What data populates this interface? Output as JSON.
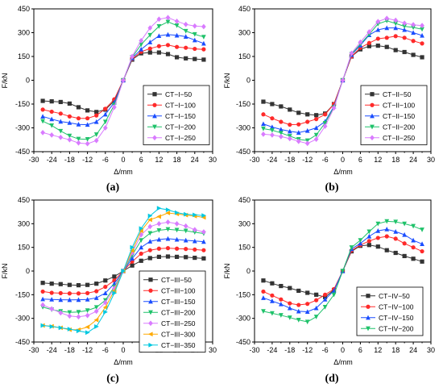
{
  "chart_data": [
    {
      "type": "line",
      "panel_label": "(a)",
      "xlabel": "Δ/mm",
      "ylabel": "F/kN",
      "xlim": [
        -30,
        30
      ],
      "ylim": [
        -450,
        450
      ],
      "xticks": [
        -30,
        -24,
        -18,
        -12,
        -6,
        0,
        6,
        12,
        18,
        24,
        30
      ],
      "yticks": [
        -450,
        -300,
        -150,
        0,
        150,
        300,
        450
      ],
      "legend_position": "right-middle",
      "x": [
        -27,
        -24,
        -21,
        -18,
        -15,
        -12,
        -9,
        -6,
        -3,
        0,
        3,
        6,
        9,
        12,
        15,
        18,
        21,
        24,
        27
      ],
      "series": [
        {
          "name": "CT−I−50",
          "color": "#333333",
          "marker": "square",
          "values": [
            -130,
            -133,
            -137,
            -147,
            -170,
            -190,
            -200,
            -185,
            -130,
            0,
            130,
            170,
            175,
            175,
            165,
            145,
            138,
            134,
            130
          ]
        },
        {
          "name": "CT−I−100",
          "color": "#ff2a2a",
          "marker": "circle",
          "values": [
            -185,
            -198,
            -210,
            -228,
            -240,
            -240,
            -222,
            -180,
            -120,
            0,
            135,
            180,
            200,
            215,
            222,
            210,
            205,
            198,
            195
          ]
        },
        {
          "name": "CT−I−150",
          "color": "#1a4dff",
          "marker": "triangle-up",
          "values": [
            -228,
            -245,
            -260,
            -268,
            -278,
            -280,
            -262,
            -215,
            -140,
            0,
            140,
            195,
            240,
            280,
            288,
            283,
            275,
            253,
            232
          ]
        },
        {
          "name": "CT−I−200",
          "color": "#1fc26a",
          "marker": "triangle-down",
          "values": [
            -258,
            -285,
            -320,
            -350,
            -370,
            -372,
            -342,
            -262,
            -155,
            0,
            145,
            225,
            285,
            340,
            368,
            345,
            310,
            290,
            273
          ]
        },
        {
          "name": "CT−I−250",
          "color": "#d97bff",
          "marker": "diamond",
          "values": [
            -330,
            -345,
            -360,
            -375,
            -395,
            -400,
            -380,
            -300,
            -170,
            0,
            150,
            250,
            330,
            385,
            395,
            372,
            352,
            342,
            338
          ]
        }
      ]
    },
    {
      "type": "line",
      "panel_label": "(b)",
      "xlabel": "Δ/mm",
      "ylabel": "F/kN",
      "xlim": [
        -30,
        30
      ],
      "ylim": [
        -450,
        450
      ],
      "xticks": [
        -30,
        -24,
        -18,
        -12,
        -6,
        0,
        6,
        12,
        18,
        24,
        30
      ],
      "yticks": [
        -450,
        -300,
        -150,
        0,
        150,
        300,
        450
      ],
      "legend_position": "right-middle",
      "x": [
        -27,
        -24,
        -21,
        -18,
        -15,
        -12,
        -9,
        -6,
        -3,
        0,
        3,
        6,
        9,
        12,
        15,
        18,
        21,
        24,
        27
      ],
      "series": [
        {
          "name": "CT−II−50",
          "color": "#333333",
          "marker": "square",
          "values": [
            -135,
            -150,
            -165,
            -185,
            -205,
            -215,
            -220,
            -210,
            -150,
            0,
            150,
            195,
            215,
            218,
            210,
            190,
            178,
            160,
            145
          ]
        },
        {
          "name": "CT−II−100",
          "color": "#ff2a2a",
          "marker": "circle",
          "values": [
            -215,
            -240,
            -262,
            -280,
            -278,
            -262,
            -245,
            -215,
            -150,
            0,
            150,
            205,
            235,
            262,
            268,
            278,
            268,
            248,
            232
          ]
        },
        {
          "name": "CT−II−150",
          "color": "#1a4dff",
          "marker": "triangle-up",
          "values": [
            -275,
            -295,
            -310,
            -322,
            -330,
            -318,
            -300,
            -260,
            -165,
            0,
            160,
            220,
            285,
            318,
            330,
            330,
            318,
            300,
            282
          ]
        },
        {
          "name": "CT−II−200",
          "color": "#1fc26a",
          "marker": "triangle-down",
          "values": [
            -305,
            -315,
            -332,
            -352,
            -372,
            -380,
            -345,
            -270,
            -170,
            0,
            165,
            228,
            290,
            355,
            375,
            358,
            340,
            333,
            322
          ]
        },
        {
          "name": "CT−II−250",
          "color": "#d97bff",
          "marker": "diamond",
          "values": [
            -340,
            -345,
            -355,
            -368,
            -385,
            -398,
            -372,
            -290,
            -175,
            0,
            170,
            240,
            305,
            370,
            390,
            378,
            360,
            350,
            345
          ]
        }
      ]
    },
    {
      "type": "line",
      "panel_label": "(c)",
      "xlabel": "Δ/mm",
      "ylabel": "F/kN",
      "xlim": [
        -30,
        30
      ],
      "ylim": [
        -450,
        450
      ],
      "xticks": [
        -30,
        -24,
        -18,
        -12,
        -6,
        0,
        6,
        12,
        18,
        24,
        30
      ],
      "yticks": [
        -450,
        -300,
        -150,
        0,
        150,
        300,
        450
      ],
      "legend_position": "right-bottom",
      "x": [
        -27,
        -24,
        -21,
        -18,
        -15,
        -12,
        -9,
        -6,
        -3,
        0,
        3,
        6,
        9,
        12,
        15,
        18,
        21,
        24,
        27
      ],
      "series": [
        {
          "name": "CT−III−50",
          "color": "#333333",
          "marker": "square",
          "values": [
            -75,
            -80,
            -83,
            -88,
            -90,
            -88,
            -80,
            -60,
            -35,
            0,
            35,
            65,
            82,
            90,
            92,
            90,
            88,
            84,
            80
          ]
        },
        {
          "name": "CT−III−100",
          "color": "#ff2a2a",
          "marker": "circle",
          "values": [
            -130,
            -138,
            -140,
            -142,
            -142,
            -140,
            -128,
            -100,
            -60,
            0,
            60,
            110,
            132,
            142,
            145,
            142,
            140,
            136,
            132
          ]
        },
        {
          "name": "CT−III−150",
          "color": "#1a4dff",
          "marker": "triangle-up",
          "values": [
            -178,
            -180,
            -182,
            -183,
            -182,
            -180,
            -170,
            -140,
            -80,
            0,
            80,
            150,
            188,
            200,
            205,
            200,
            195,
            190,
            186
          ]
        },
        {
          "name": "CT−III−200",
          "color": "#1fc26a",
          "marker": "triangle-down",
          "values": [
            -228,
            -245,
            -255,
            -262,
            -260,
            -250,
            -230,
            -185,
            -100,
            0,
            100,
            195,
            240,
            258,
            265,
            260,
            255,
            246,
            238
          ]
        },
        {
          "name": "CT−III−250",
          "color": "#d97bff",
          "marker": "diamond",
          "values": [
            -215,
            -240,
            -265,
            -285,
            -290,
            -282,
            -255,
            -200,
            -110,
            0,
            115,
            230,
            282,
            300,
            310,
            300,
            285,
            262,
            248
          ]
        },
        {
          "name": "CT−III−300",
          "color": "#ffaa00",
          "marker": "triangle-left",
          "values": [
            -345,
            -350,
            -360,
            -372,
            -372,
            -355,
            -310,
            -230,
            -125,
            0,
            130,
            255,
            325,
            345,
            368,
            362,
            355,
            348,
            340
          ]
        },
        {
          "name": "CT−III−350",
          "color": "#00c8e0",
          "marker": "triangle-right",
          "values": [
            -345,
            -352,
            -360,
            -368,
            -380,
            -390,
            -352,
            -260,
            -140,
            0,
            150,
            270,
            350,
            398,
            388,
            370,
            360,
            356,
            352
          ]
        }
      ]
    },
    {
      "type": "line",
      "panel_label": "(d)",
      "xlabel": "Δ/mm",
      "ylabel": "F/kN",
      "xlim": [
        -30,
        30
      ],
      "ylim": [
        -450,
        450
      ],
      "xticks": [
        -30,
        -24,
        -18,
        -12,
        -6,
        0,
        6,
        12,
        18,
        24,
        30
      ],
      "yticks": [
        -450,
        -300,
        -150,
        0,
        150,
        300,
        450
      ],
      "legend_position": "right-bottom",
      "x": [
        -27,
        -24,
        -21,
        -18,
        -15,
        -12,
        -9,
        -6,
        -3,
        0,
        3,
        6,
        9,
        12,
        15,
        18,
        21,
        24,
        27
      ],
      "series": [
        {
          "name": "CT−IV−50",
          "color": "#333333",
          "marker": "square",
          "values": [
            -60,
            -78,
            -95,
            -108,
            -125,
            -138,
            -150,
            -165,
            -120,
            0,
            125,
            160,
            165,
            155,
            132,
            115,
            95,
            78,
            60
          ]
        },
        {
          "name": "CT−IV−100",
          "color": "#ff2a2a",
          "marker": "circle",
          "values": [
            -130,
            -155,
            -180,
            -205,
            -215,
            -208,
            -185,
            -150,
            -115,
            0,
            130,
            165,
            190,
            210,
            220,
            205,
            175,
            150,
            125
          ]
        },
        {
          "name": "CT−IV−150",
          "color": "#1a4dff",
          "marker": "triangle-up",
          "values": [
            -170,
            -190,
            -210,
            -235,
            -255,
            -258,
            -235,
            -180,
            -125,
            0,
            140,
            175,
            220,
            255,
            265,
            250,
            230,
            195,
            172
          ]
        },
        {
          "name": "CT−IV−200",
          "color": "#1fc26a",
          "marker": "triangle-down",
          "values": [
            -255,
            -268,
            -280,
            -295,
            -310,
            -322,
            -290,
            -228,
            -150,
            0,
            150,
            195,
            250,
            300,
            315,
            312,
            300,
            285,
            262
          ]
        }
      ]
    }
  ]
}
